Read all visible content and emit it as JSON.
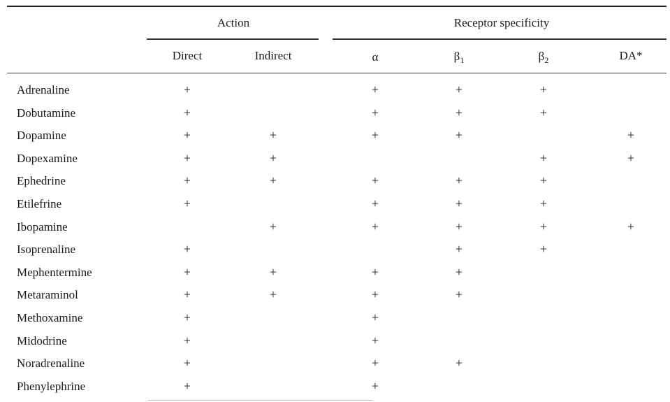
{
  "groups": {
    "action": "Action",
    "receptor": "Receptor specificity"
  },
  "columns": {
    "direct": "Direct",
    "indirect": "Indirect",
    "alpha": "α",
    "beta": "β",
    "beta1_sub": "1",
    "beta2_sub": "2",
    "da": "DA*"
  },
  "mark": "+",
  "rows": [
    {
      "name": "Adrenaline",
      "marks": [
        true,
        false,
        true,
        true,
        true,
        false
      ]
    },
    {
      "name": "Dobutamine",
      "marks": [
        true,
        false,
        true,
        true,
        true,
        false
      ]
    },
    {
      "name": "Dopamine",
      "marks": [
        true,
        true,
        true,
        true,
        false,
        true
      ]
    },
    {
      "name": "Dopexamine",
      "marks": [
        true,
        true,
        false,
        false,
        true,
        true
      ]
    },
    {
      "name": "Ephedrine",
      "marks": [
        true,
        true,
        true,
        true,
        true,
        false
      ]
    },
    {
      "name": "Etilefrine",
      "marks": [
        true,
        false,
        true,
        true,
        true,
        false
      ]
    },
    {
      "name": "Ibopamine",
      "marks": [
        false,
        true,
        true,
        true,
        true,
        true
      ]
    },
    {
      "name": "Isoprenaline",
      "marks": [
        true,
        false,
        false,
        true,
        true,
        false
      ]
    },
    {
      "name": "Mephentermine",
      "marks": [
        true,
        true,
        true,
        true,
        false,
        false
      ]
    },
    {
      "name": "Metaraminol",
      "marks": [
        true,
        true,
        true,
        true,
        false,
        false
      ]
    },
    {
      "name": "Methoxamine",
      "marks": [
        true,
        false,
        true,
        false,
        false,
        false
      ]
    },
    {
      "name": "Midodrine",
      "marks": [
        true,
        false,
        true,
        false,
        false,
        false
      ]
    },
    {
      "name": "Noradrenaline",
      "marks": [
        true,
        false,
        true,
        true,
        false,
        false
      ]
    },
    {
      "name": "Phenylephrine",
      "marks": [
        true,
        false,
        true,
        false,
        false,
        false
      ]
    }
  ]
}
